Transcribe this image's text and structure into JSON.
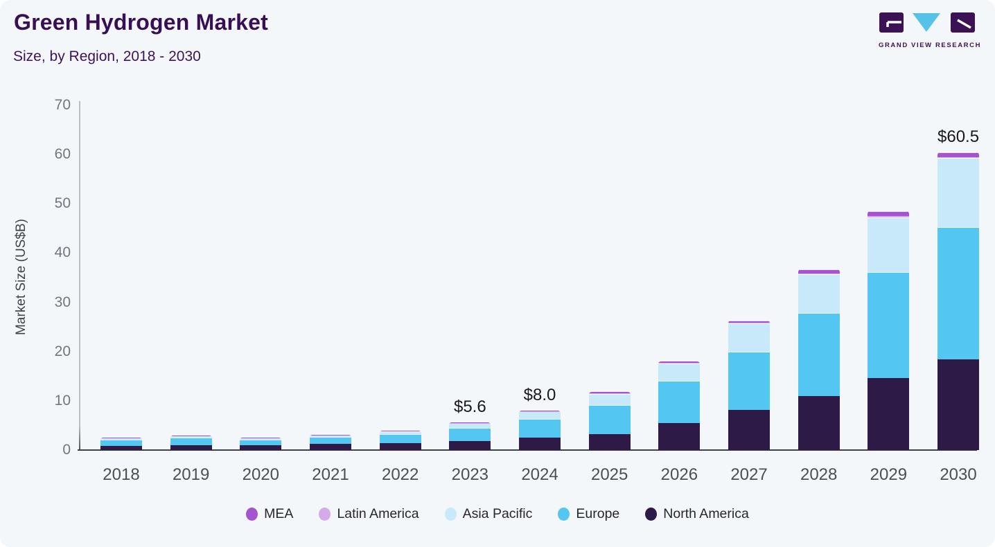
{
  "header": {
    "title": "Green Hydrogen Market",
    "subtitle": "Size, by Region, 2018 - 2030"
  },
  "logo": {
    "text": "GRAND VIEW RESEARCH",
    "purple": "#3b1254",
    "blue": "#55c3e9"
  },
  "chart_data": {
    "type": "bar",
    "stacked": true,
    "title": "Green Hydrogen Market Size, by Region, 2018 - 2030",
    "xlabel": "",
    "ylabel": "Market Size (US$B)",
    "ylim": [
      0,
      70
    ],
    "yticks": [
      0,
      10,
      20,
      30,
      40,
      50,
      60,
      70
    ],
    "grid": false,
    "legend_position": "bottom",
    "categories": [
      "2018",
      "2019",
      "2020",
      "2021",
      "2022",
      "2023",
      "2024",
      "2025",
      "2026",
      "2027",
      "2028",
      "2029",
      "2030"
    ],
    "series": [
      {
        "name": "North America",
        "color": "#2e1a47",
        "values": [
          0.9,
          1.0,
          0.95,
          1.2,
          1.4,
          1.8,
          2.5,
          3.2,
          5.5,
          8.1,
          11.0,
          14.6,
          18.4
        ]
      },
      {
        "name": "Europe",
        "color": "#53c6f1",
        "values": [
          1.2,
          1.5,
          1.15,
          1.45,
          1.85,
          2.75,
          3.8,
          6.0,
          8.6,
          11.9,
          16.8,
          21.5,
          26.9
        ]
      },
      {
        "name": "Asia Pacific",
        "color": "#c8e9f9",
        "values": [
          0.35,
          0.4,
          0.35,
          0.4,
          0.6,
          0.95,
          1.55,
          2.25,
          3.5,
          5.7,
          7.9,
          11.2,
          14.0
        ]
      },
      {
        "name": "Latin America",
        "color": "#d6a9e9",
        "values": [
          0.02,
          0.02,
          0.02,
          0.02,
          0.02,
          0.03,
          0.04,
          0.05,
          0.08,
          0.1,
          0.15,
          0.2,
          0.2
        ]
      },
      {
        "name": "MEA",
        "color": "#a653cf",
        "values": [
          0.03,
          0.03,
          0.03,
          0.03,
          0.03,
          0.07,
          0.11,
          0.3,
          0.32,
          0.5,
          0.85,
          1.0,
          1.0
        ]
      }
    ],
    "totals": [
      2.5,
      2.95,
      2.5,
      3.1,
      3.9,
      5.6,
      8.0,
      11.8,
      18.0,
      26.3,
      36.7,
      48.5,
      60.5
    ],
    "annotations": [
      {
        "category": "2023",
        "text": "$5.6"
      },
      {
        "category": "2024",
        "text": "$8.0"
      },
      {
        "category": "2030",
        "text": "$60.5"
      }
    ]
  }
}
